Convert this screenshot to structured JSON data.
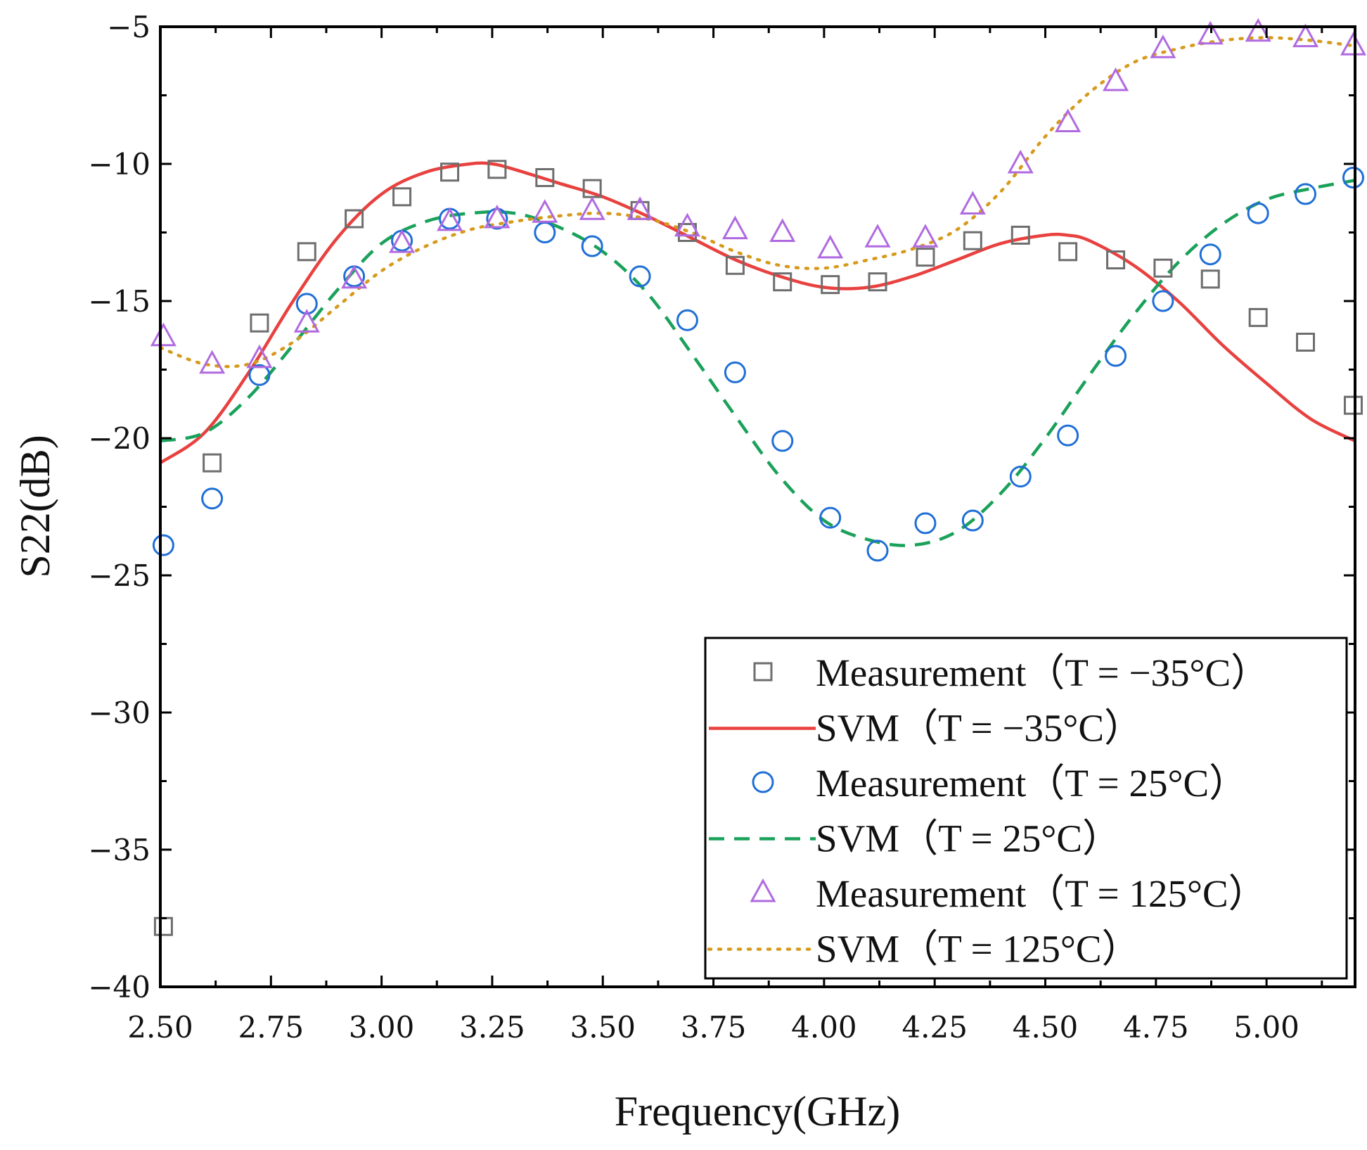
{
  "chart_data": {
    "type": "line",
    "title": "",
    "xlabel": "Frequency(GHz)",
    "ylabel": "S22(dB)",
    "xlim": [
      2.5,
      5.2
    ],
    "ylim": [
      -40,
      -5
    ],
    "xticks": [
      2.5,
      2.75,
      3.0,
      3.25,
      3.5,
      3.75,
      4.0,
      4.25,
      4.5,
      4.75,
      5.0
    ],
    "xtick_labels": [
      "2.50",
      "2.75",
      "3.00",
      "3.25",
      "3.50",
      "3.75",
      "4.00",
      "4.25",
      "4.50",
      "4.75",
      "5.00"
    ],
    "yticks": [
      -40,
      -35,
      -30,
      -25,
      -20,
      -15,
      -10,
      -5
    ],
    "ytick_labels": [
      "−40",
      "−35",
      "−30",
      "−25",
      "−20",
      "−15",
      "−10",
      "−5"
    ],
    "grid": false,
    "legend_position": "bottom-right",
    "series": [
      {
        "name": "Measurement（T = −35°C）",
        "kind": "marker",
        "marker": "square",
        "color": "#6e6e6e",
        "x": [
          2.507,
          2.617,
          2.724,
          2.831,
          2.938,
          3.046,
          3.154,
          3.261,
          3.369,
          3.476,
          3.584,
          3.691,
          3.799,
          3.906,
          4.014,
          4.121,
          4.229,
          4.336,
          4.444,
          4.551,
          4.659,
          4.766,
          4.873,
          4.981,
          5.088,
          5.196
        ],
        "y": [
          -37.8,
          -20.9,
          -15.8,
          -13.2,
          -12.0,
          -11.2,
          -10.3,
          -10.2,
          -10.5,
          -10.9,
          -11.7,
          -12.5,
          -13.7,
          -14.3,
          -14.4,
          -14.3,
          -13.4,
          -12.8,
          -12.6,
          -13.2,
          -13.5,
          -13.8,
          -14.2,
          -15.6,
          -16.5,
          -18.8
        ]
      },
      {
        "name": "SVM（T = −35°C）",
        "kind": "line",
        "dash": "solid",
        "color": "#e8413f",
        "x": [
          2.5,
          2.6,
          2.7,
          2.8,
          2.9,
          3.0,
          3.1,
          3.2,
          3.25,
          3.3,
          3.4,
          3.5,
          3.6,
          3.7,
          3.8,
          3.9,
          4.0,
          4.1,
          4.2,
          4.3,
          4.4,
          4.5,
          4.55,
          4.6,
          4.7,
          4.8,
          4.9,
          5.0,
          5.1,
          5.2
        ],
        "y": [
          -20.9,
          -19.8,
          -17.6,
          -15.0,
          -12.7,
          -11.1,
          -10.3,
          -10.0,
          -10.0,
          -10.2,
          -10.7,
          -11.2,
          -11.9,
          -12.7,
          -13.5,
          -14.1,
          -14.5,
          -14.5,
          -14.1,
          -13.5,
          -12.9,
          -12.6,
          -12.6,
          -12.8,
          -13.7,
          -15.0,
          -16.6,
          -18.0,
          -19.3,
          -20.1
        ]
      },
      {
        "name": "Measurement（T = 25°C）",
        "kind": "marker",
        "marker": "circle",
        "color": "#1f6fd6",
        "x": [
          2.507,
          2.617,
          2.724,
          2.831,
          2.938,
          3.046,
          3.154,
          3.261,
          3.369,
          3.476,
          3.584,
          3.691,
          3.799,
          3.906,
          4.014,
          4.121,
          4.229,
          4.336,
          4.444,
          4.551,
          4.659,
          4.766,
          4.873,
          4.981,
          5.088,
          5.196
        ],
        "y": [
          -23.9,
          -22.2,
          -17.7,
          -15.1,
          -14.1,
          -12.8,
          -12.0,
          -12.0,
          -12.5,
          -13.0,
          -14.1,
          -15.7,
          -17.6,
          -20.1,
          -22.9,
          -24.1,
          -23.1,
          -23.0,
          -21.4,
          -19.9,
          -17.0,
          -15.0,
          -13.3,
          -11.8,
          -11.1,
          -10.5
        ]
      },
      {
        "name": "SVM（T = 25°C）",
        "kind": "line",
        "dash": "dashed",
        "color": "#1aa15a",
        "x": [
          2.5,
          2.6,
          2.7,
          2.8,
          2.9,
          3.0,
          3.1,
          3.2,
          3.3,
          3.4,
          3.5,
          3.6,
          3.7,
          3.8,
          3.9,
          4.0,
          4.1,
          4.2,
          4.3,
          4.4,
          4.5,
          4.6,
          4.7,
          4.8,
          4.9,
          5.0,
          5.1,
          5.2
        ],
        "y": [
          -20.1,
          -19.8,
          -18.5,
          -16.6,
          -14.6,
          -12.9,
          -12.1,
          -11.8,
          -11.8,
          -12.3,
          -13.2,
          -14.7,
          -16.9,
          -19.2,
          -21.4,
          -23.0,
          -23.7,
          -23.9,
          -23.4,
          -22.0,
          -20.0,
          -17.7,
          -15.5,
          -13.6,
          -12.2,
          -11.3,
          -10.9,
          -10.6
        ]
      },
      {
        "name": "Measurement（T = 125°C）",
        "kind": "marker",
        "marker": "triangle",
        "color": "#b06ae0",
        "x": [
          2.507,
          2.617,
          2.724,
          2.831,
          2.938,
          3.046,
          3.154,
          3.261,
          3.369,
          3.476,
          3.584,
          3.691,
          3.799,
          3.906,
          4.014,
          4.121,
          4.229,
          4.336,
          4.444,
          4.551,
          4.659,
          4.766,
          4.873,
          4.981,
          5.088,
          5.196
        ],
        "y": [
          -16.3,
          -17.3,
          -17.1,
          -15.8,
          -14.2,
          -12.9,
          -12.1,
          -12.0,
          -11.8,
          -11.7,
          -11.7,
          -12.3,
          -12.4,
          -12.5,
          -13.1,
          -12.7,
          -12.7,
          -11.5,
          -10.0,
          -8.5,
          -7.0,
          -5.8,
          -5.3,
          -5.2,
          -5.4,
          -5.7
        ]
      },
      {
        "name": "SVM（T = 125°C）",
        "kind": "line",
        "dash": "dotted",
        "color": "#d69a1c",
        "x": [
          2.5,
          2.6,
          2.7,
          2.8,
          2.9,
          3.0,
          3.1,
          3.2,
          3.3,
          3.4,
          3.5,
          3.6,
          3.7,
          3.8,
          3.9,
          4.0,
          4.1,
          4.2,
          4.3,
          4.4,
          4.5,
          4.6,
          4.7,
          4.8,
          4.9,
          5.0,
          5.1,
          5.2
        ],
        "y": [
          -16.7,
          -17.3,
          -17.3,
          -16.5,
          -15.2,
          -13.9,
          -13.0,
          -12.4,
          -12.1,
          -11.9,
          -11.8,
          -12.0,
          -12.5,
          -13.2,
          -13.7,
          -13.8,
          -13.5,
          -13.1,
          -12.4,
          -11.0,
          -9.0,
          -7.4,
          -6.3,
          -5.8,
          -5.5,
          -5.4,
          -5.5,
          -5.7
        ]
      }
    ]
  }
}
